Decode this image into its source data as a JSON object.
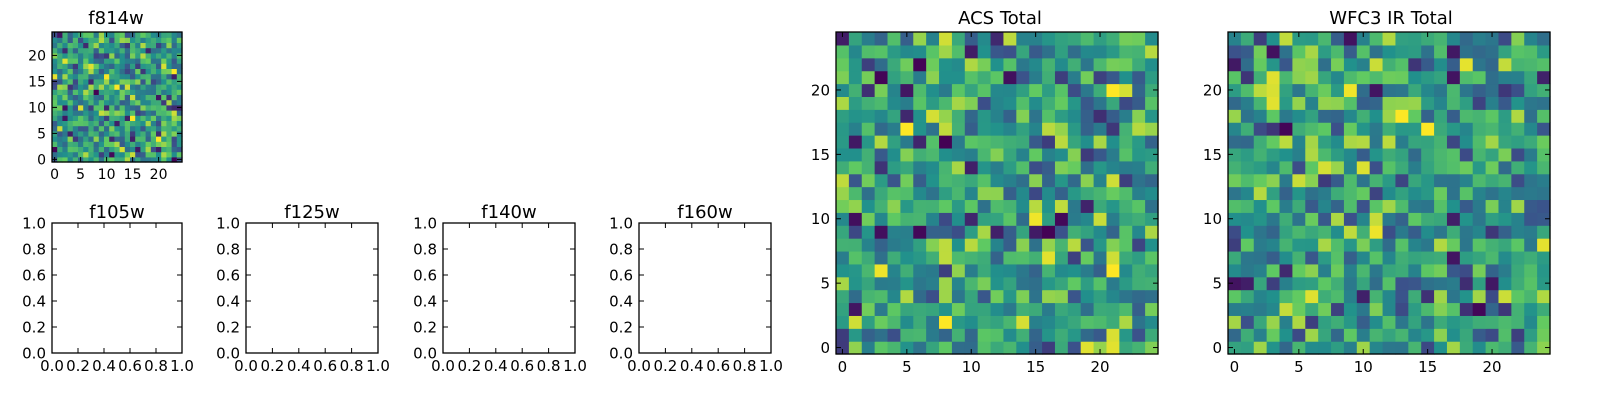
{
  "colors": {
    "axis": "#000000",
    "background": "#ffffff",
    "colormap": [
      "#440154",
      "#3b528b",
      "#21918c",
      "#5ec962",
      "#fde725"
    ]
  },
  "chart_data": [
    {
      "id": "f814w",
      "type": "heatmap",
      "title": "f814w",
      "grid_size": 25,
      "xlim": [
        -0.5,
        24.5
      ],
      "ylim": [
        -0.5,
        24.5
      ],
      "xticks": [
        0,
        5,
        10,
        15,
        20
      ],
      "yticks": [
        0,
        5,
        10,
        15,
        20
      ],
      "seed": 814
    },
    {
      "id": "f105w",
      "type": "empty",
      "title": "f105w",
      "xlim": [
        0,
        1
      ],
      "ylim": [
        0,
        1
      ],
      "xticks": [
        "0.0",
        "0.2",
        "0.4",
        "0.6",
        "0.8",
        "1.0"
      ],
      "yticks": [
        "0.0",
        "0.2",
        "0.4",
        "0.6",
        "0.8",
        "1.0"
      ]
    },
    {
      "id": "f125w",
      "type": "empty",
      "title": "f125w",
      "xlim": [
        0,
        1
      ],
      "ylim": [
        0,
        1
      ],
      "xticks": [
        "0.0",
        "0.2",
        "0.4",
        "0.6",
        "0.8",
        "1.0"
      ],
      "yticks": [
        "0.0",
        "0.2",
        "0.4",
        "0.6",
        "0.8",
        "1.0"
      ]
    },
    {
      "id": "f140w",
      "type": "empty",
      "title": "f140w",
      "xlim": [
        0,
        1
      ],
      "ylim": [
        0,
        1
      ],
      "xticks": [
        "0.0",
        "0.2",
        "0.4",
        "0.6",
        "0.8",
        "1.0"
      ],
      "yticks": [
        "0.0",
        "0.2",
        "0.4",
        "0.6",
        "0.8",
        "1.0"
      ]
    },
    {
      "id": "f160w",
      "type": "empty",
      "title": "f160w",
      "xlim": [
        0,
        1
      ],
      "ylim": [
        0,
        1
      ],
      "xticks": [
        "0.0",
        "0.2",
        "0.4",
        "0.6",
        "0.8",
        "1.0"
      ],
      "yticks": [
        "0.0",
        "0.2",
        "0.4",
        "0.6",
        "0.8",
        "1.0"
      ]
    },
    {
      "id": "acs-total",
      "type": "heatmap",
      "title": "ACS Total",
      "grid_size": 25,
      "xlim": [
        -0.5,
        24.5
      ],
      "ylim": [
        -0.5,
        24.5
      ],
      "xticks": [
        0,
        5,
        10,
        15,
        20
      ],
      "yticks": [
        0,
        5,
        10,
        15,
        20
      ],
      "seed": 1001
    },
    {
      "id": "wfc3-ir-total",
      "type": "heatmap",
      "title": "WFC3 IR Total",
      "grid_size": 25,
      "xlim": [
        -0.5,
        24.5
      ],
      "ylim": [
        -0.5,
        24.5
      ],
      "xticks": [
        0,
        5,
        10,
        15,
        20
      ],
      "yticks": [
        0,
        5,
        10,
        15,
        20
      ],
      "seed": 3003
    }
  ]
}
